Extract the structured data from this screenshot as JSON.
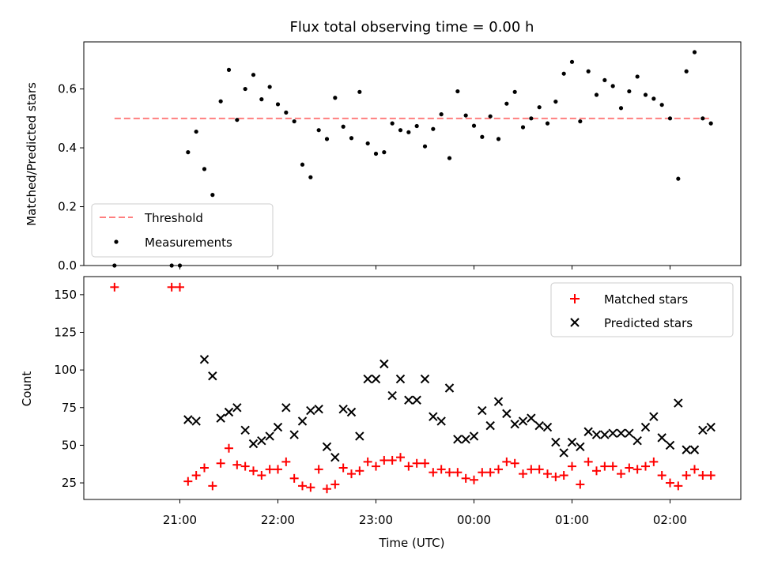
{
  "chart_data": [
    {
      "type": "scatter",
      "title": "Flux total observing time = 0.00 h",
      "xlabel": "",
      "ylabel": "Matched/Predicted stars",
      "ylim": [
        0,
        0.76
      ],
      "yticks": [
        "0.0",
        "0.2",
        "0.4",
        "0.6"
      ],
      "ytick_values": [
        0,
        0.2,
        0.4,
        0.6
      ],
      "legend_position": "lower-left",
      "threshold": {
        "name": "Threshold",
        "value": 0.5,
        "color": "#ff7f7f",
        "x_start": "20:20",
        "x_end": "02:25"
      },
      "series": [
        {
          "name": "Measurements",
          "color": "#000000",
          "marker": "dot",
          "points": [
            [
              "20:20",
              0.0
            ],
            [
              "20:55",
              0.0
            ],
            [
              "21:00",
              0.0
            ],
            [
              "21:05",
              0.385
            ],
            [
              "21:10",
              0.455
            ],
            [
              "21:15",
              0.328
            ],
            [
              "21:20",
              0.24
            ],
            [
              "21:25",
              0.558
            ],
            [
              "21:30",
              0.665
            ],
            [
              "21:35",
              0.495
            ],
            [
              "21:40",
              0.6
            ],
            [
              "21:45",
              0.648
            ],
            [
              "21:50",
              0.565
            ],
            [
              "21:55",
              0.607
            ],
            [
              "22:00",
              0.548
            ],
            [
              "22:05",
              0.52
            ],
            [
              "22:10",
              0.49
            ],
            [
              "22:15",
              0.343
            ],
            [
              "22:20",
              0.3
            ],
            [
              "22:25",
              0.46
            ],
            [
              "22:30",
              0.43
            ],
            [
              "22:35",
              0.57
            ],
            [
              "22:40",
              0.472
            ],
            [
              "22:45",
              0.433
            ],
            [
              "22:50",
              0.59
            ],
            [
              "22:55",
              0.415
            ],
            [
              "23:00",
              0.38
            ],
            [
              "23:05",
              0.385
            ],
            [
              "23:10",
              0.483
            ],
            [
              "23:15",
              0.46
            ],
            [
              "23:20",
              0.453
            ],
            [
              "23:25",
              0.474
            ],
            [
              "23:30",
              0.405
            ],
            [
              "23:35",
              0.464
            ],
            [
              "23:40",
              0.514
            ],
            [
              "23:45",
              0.365
            ],
            [
              "23:50",
              0.592
            ],
            [
              "23:55",
              0.51
            ],
            [
              "00:00",
              0.475
            ],
            [
              "00:05",
              0.437
            ],
            [
              "00:10",
              0.507
            ],
            [
              "00:15",
              0.43
            ],
            [
              "00:20",
              0.55
            ],
            [
              "00:25",
              0.59
            ],
            [
              "00:30",
              0.47
            ],
            [
              "00:35",
              0.5
            ],
            [
              "00:40",
              0.538
            ],
            [
              "00:45",
              0.483
            ],
            [
              "00:50",
              0.557
            ],
            [
              "00:55",
              0.652
            ],
            [
              "01:00",
              0.692
            ],
            [
              "01:05",
              0.49
            ],
            [
              "01:10",
              0.66
            ],
            [
              "01:15",
              0.58
            ],
            [
              "01:20",
              0.63
            ],
            [
              "01:25",
              0.61
            ],
            [
              "01:30",
              0.535
            ],
            [
              "01:35",
              0.592
            ],
            [
              "01:40",
              0.642
            ],
            [
              "01:45",
              0.58
            ],
            [
              "01:50",
              0.567
            ],
            [
              "01:55",
              0.546
            ],
            [
              "02:00",
              0.5
            ],
            [
              "02:05",
              0.295
            ],
            [
              "02:10",
              0.66
            ],
            [
              "02:15",
              0.725
            ],
            [
              "02:20",
              0.5
            ],
            [
              "02:25",
              0.483
            ]
          ]
        }
      ]
    },
    {
      "type": "scatter",
      "title": "",
      "xlabel": "Time (UTC)",
      "ylabel": "Count",
      "ylim": [
        14,
        162
      ],
      "yticks": [
        "25",
        "50",
        "75",
        "100",
        "125",
        "150"
      ],
      "ytick_values": [
        25,
        50,
        75,
        100,
        125,
        150
      ],
      "xticks": [
        "21:00",
        "22:00",
        "23:00",
        "00:00",
        "01:00",
        "02:00"
      ],
      "legend_position": "upper-right",
      "series": [
        {
          "name": "Matched stars",
          "color": "#ff0000",
          "marker": "plus",
          "points": [
            [
              "20:20",
              155
            ],
            [
              "20:55",
              155
            ],
            [
              "21:00",
              155
            ],
            [
              "21:05",
              26
            ],
            [
              "21:10",
              30
            ],
            [
              "21:15",
              35
            ],
            [
              "21:20",
              23
            ],
            [
              "21:25",
              38
            ],
            [
              "21:30",
              48
            ],
            [
              "21:35",
              37
            ],
            [
              "21:40",
              36
            ],
            [
              "21:45",
              33
            ],
            [
              "21:50",
              30
            ],
            [
              "21:55",
              34
            ],
            [
              "22:00",
              34
            ],
            [
              "22:05",
              39
            ],
            [
              "22:10",
              28
            ],
            [
              "22:15",
              23
            ],
            [
              "22:20",
              22
            ],
            [
              "22:25",
              34
            ],
            [
              "22:30",
              21
            ],
            [
              "22:35",
              24
            ],
            [
              "22:40",
              35
            ],
            [
              "22:45",
              31
            ],
            [
              "22:50",
              33
            ],
            [
              "22:55",
              39
            ],
            [
              "23:00",
              36
            ],
            [
              "23:05",
              40
            ],
            [
              "23:10",
              40
            ],
            [
              "23:15",
              42
            ],
            [
              "23:20",
              36
            ],
            [
              "23:25",
              38
            ],
            [
              "23:30",
              38
            ],
            [
              "23:35",
              32
            ],
            [
              "23:40",
              34
            ],
            [
              "23:45",
              32
            ],
            [
              "23:50",
              32
            ],
            [
              "23:55",
              28
            ],
            [
              "00:00",
              27
            ],
            [
              "00:05",
              32
            ],
            [
              "00:10",
              32
            ],
            [
              "00:15",
              34
            ],
            [
              "00:20",
              39
            ],
            [
              "00:25",
              38
            ],
            [
              "00:30",
              31
            ],
            [
              "00:35",
              34
            ],
            [
              "00:40",
              34
            ],
            [
              "00:45",
              31
            ],
            [
              "00:50",
              29
            ],
            [
              "00:55",
              30
            ],
            [
              "01:00",
              36
            ],
            [
              "01:05",
              24
            ],
            [
              "01:10",
              39
            ],
            [
              "01:15",
              33
            ],
            [
              "01:20",
              36
            ],
            [
              "01:25",
              36
            ],
            [
              "01:30",
              31
            ],
            [
              "01:35",
              35
            ],
            [
              "01:40",
              34
            ],
            [
              "01:45",
              36
            ],
            [
              "01:50",
              39
            ],
            [
              "01:55",
              30
            ],
            [
              "02:00",
              25
            ],
            [
              "02:05",
              23
            ],
            [
              "02:10",
              30
            ],
            [
              "02:15",
              34
            ],
            [
              "02:20",
              30
            ],
            [
              "02:25",
              30
            ]
          ]
        },
        {
          "name": "Predicted stars",
          "color": "#000000",
          "marker": "x",
          "points": [
            [
              "21:05",
              67
            ],
            [
              "21:10",
              66
            ],
            [
              "21:15",
              107
            ],
            [
              "21:20",
              96
            ],
            [
              "21:25",
              68
            ],
            [
              "21:30",
              72
            ],
            [
              "21:35",
              75
            ],
            [
              "21:40",
              60
            ],
            [
              "21:45",
              51
            ],
            [
              "21:50",
              53
            ],
            [
              "21:55",
              56
            ],
            [
              "22:00",
              62
            ],
            [
              "22:05",
              75
            ],
            [
              "22:10",
              57
            ],
            [
              "22:15",
              66
            ],
            [
              "22:20",
              73
            ],
            [
              "22:25",
              74
            ],
            [
              "22:30",
              49
            ],
            [
              "22:35",
              42
            ],
            [
              "22:40",
              74
            ],
            [
              "22:45",
              72
            ],
            [
              "22:50",
              56
            ],
            [
              "22:55",
              94
            ],
            [
              "23:00",
              94
            ],
            [
              "23:05",
              104
            ],
            [
              "23:10",
              83
            ],
            [
              "23:15",
              94
            ],
            [
              "23:20",
              80
            ],
            [
              "23:25",
              80
            ],
            [
              "23:30",
              94
            ],
            [
              "23:35",
              69
            ],
            [
              "23:40",
              66
            ],
            [
              "23:45",
              88
            ],
            [
              "23:50",
              54
            ],
            [
              "23:55",
              54
            ],
            [
              "00:00",
              56
            ],
            [
              "00:05",
              73
            ],
            [
              "00:10",
              63
            ],
            [
              "00:15",
              79
            ],
            [
              "00:20",
              71
            ],
            [
              "00:25",
              64
            ],
            [
              "00:30",
              66
            ],
            [
              "00:35",
              68
            ],
            [
              "00:40",
              63
            ],
            [
              "00:45",
              62
            ],
            [
              "00:50",
              52
            ],
            [
              "00:55",
              45
            ],
            [
              "01:00",
              52
            ],
            [
              "01:05",
              49
            ],
            [
              "01:10",
              59
            ],
            [
              "01:15",
              57
            ],
            [
              "01:20",
              57
            ],
            [
              "01:25",
              58
            ],
            [
              "01:30",
              58
            ],
            [
              "01:35",
              58
            ],
            [
              "01:40",
              53
            ],
            [
              "01:45",
              62
            ],
            [
              "01:50",
              69
            ],
            [
              "01:55",
              55
            ],
            [
              "02:00",
              50
            ],
            [
              "02:05",
              78
            ],
            [
              "02:10",
              47
            ],
            [
              "02:15",
              47
            ],
            [
              "02:20",
              60
            ],
            [
              "02:25",
              62
            ]
          ]
        }
      ]
    }
  ]
}
